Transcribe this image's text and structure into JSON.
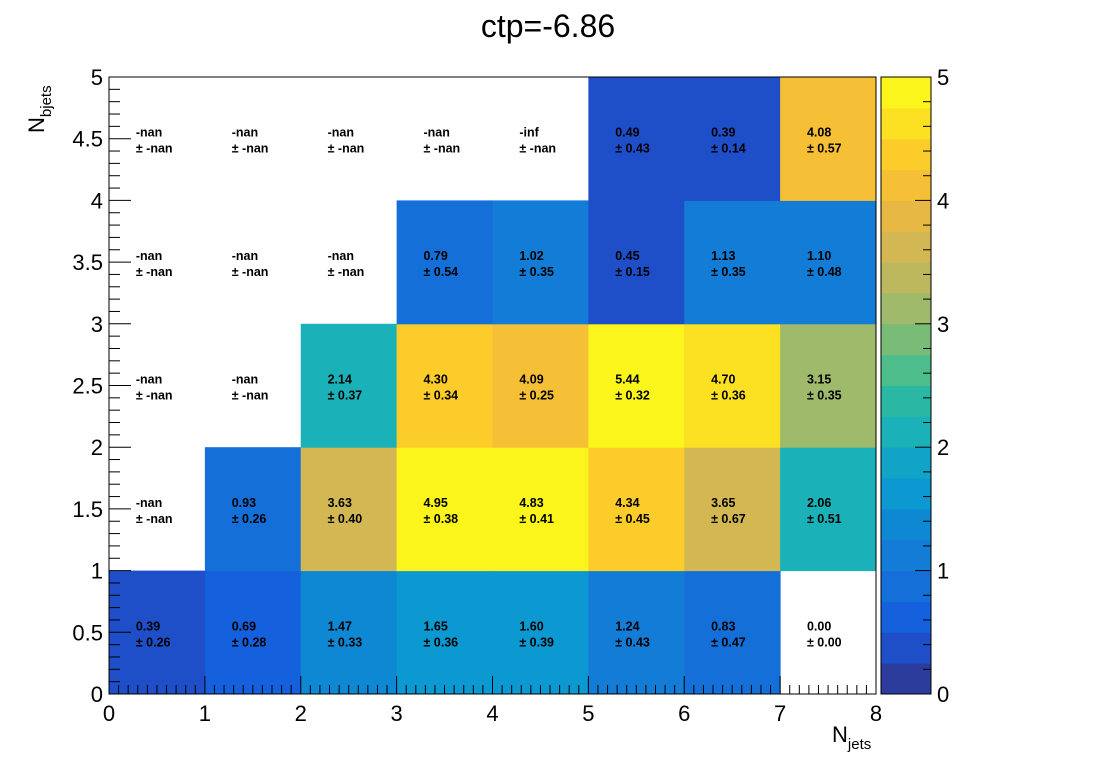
{
  "chart_data": {
    "type": "heatmap",
    "title": "ctp=-6.86",
    "xlabel": {
      "main": "N",
      "sub": "jets"
    },
    "ylabel": {
      "main": "N",
      "sub": "bjets"
    },
    "xlim": [
      0,
      8
    ],
    "ylim": [
      0,
      5
    ],
    "zlim": [
      0,
      5
    ],
    "x_ticks": [
      "0",
      "1",
      "2",
      "3",
      "4",
      "5",
      "6",
      "7",
      "8"
    ],
    "y_ticks": [
      "0",
      "0.5",
      "1",
      "1.5",
      "2",
      "2.5",
      "3",
      "3.5",
      "4",
      "4.5",
      "5"
    ],
    "z_ticks": [
      "0",
      "1",
      "2",
      "3",
      "4",
      "5"
    ],
    "rows": [
      {
        "y_bin": [
          0,
          1
        ],
        "cells": [
          {
            "x": 0,
            "value": 0.39,
            "label": "0.39",
            "error": "± 0.26"
          },
          {
            "x": 1,
            "value": 0.69,
            "label": "0.69",
            "error": "± 0.28"
          },
          {
            "x": 2,
            "value": 1.47,
            "label": "1.47",
            "error": "± 0.33"
          },
          {
            "x": 3,
            "value": 1.65,
            "label": "1.65",
            "error": "± 0.36"
          },
          {
            "x": 4,
            "value": 1.6,
            "label": "1.60",
            "error": "± 0.39"
          },
          {
            "x": 5,
            "value": 1.24,
            "label": "1.24",
            "error": "± 0.43"
          },
          {
            "x": 6,
            "value": 0.83,
            "label": "0.83",
            "error": "± 0.47"
          },
          {
            "x": 7,
            "value": 0.0,
            "label": "0.00",
            "error": "± 0.00"
          }
        ]
      },
      {
        "y_bin": [
          1,
          2
        ],
        "cells": [
          {
            "x": 0,
            "value": null,
            "label": "-nan",
            "error": "± -nan"
          },
          {
            "x": 1,
            "value": 0.93,
            "label": "0.93",
            "error": "± 0.26"
          },
          {
            "x": 2,
            "value": 3.63,
            "label": "3.63",
            "error": "± 0.40"
          },
          {
            "x": 3,
            "value": 4.95,
            "label": "4.95",
            "error": "± 0.38"
          },
          {
            "x": 4,
            "value": 4.83,
            "label": "4.83",
            "error": "± 0.41"
          },
          {
            "x": 5,
            "value": 4.34,
            "label": "4.34",
            "error": "± 0.45"
          },
          {
            "x": 6,
            "value": 3.65,
            "label": "3.65",
            "error": "± 0.67"
          },
          {
            "x": 7,
            "value": 2.06,
            "label": "2.06",
            "error": "± 0.51"
          }
        ]
      },
      {
        "y_bin": [
          2,
          3
        ],
        "cells": [
          {
            "x": 0,
            "value": null,
            "label": "-nan",
            "error": "± -nan"
          },
          {
            "x": 1,
            "value": null,
            "label": "-nan",
            "error": "± -nan"
          },
          {
            "x": 2,
            "value": 2.14,
            "label": "2.14",
            "error": "± 0.37"
          },
          {
            "x": 3,
            "value": 4.3,
            "label": "4.30",
            "error": "± 0.34"
          },
          {
            "x": 4,
            "value": 4.09,
            "label": "4.09",
            "error": "± 0.25"
          },
          {
            "x": 5,
            "value": 5.44,
            "label": "5.44",
            "error": "± 0.32"
          },
          {
            "x": 6,
            "value": 4.7,
            "label": "4.70",
            "error": "± 0.36"
          },
          {
            "x": 7,
            "value": 3.15,
            "label": "3.15",
            "error": "± 0.35"
          }
        ]
      },
      {
        "y_bin": [
          3,
          4
        ],
        "cells": [
          {
            "x": 0,
            "value": null,
            "label": "-nan",
            "error": "± -nan"
          },
          {
            "x": 1,
            "value": null,
            "label": "-nan",
            "error": "± -nan"
          },
          {
            "x": 2,
            "value": null,
            "label": "-nan",
            "error": "± -nan"
          },
          {
            "x": 3,
            "value": 0.79,
            "label": "0.79",
            "error": "± 0.54"
          },
          {
            "x": 4,
            "value": 1.02,
            "label": "1.02",
            "error": "± 0.35"
          },
          {
            "x": 5,
            "value": 0.45,
            "label": "0.45",
            "error": "± 0.15"
          },
          {
            "x": 6,
            "value": 1.13,
            "label": "1.13",
            "error": "± 0.35"
          },
          {
            "x": 7,
            "value": 1.1,
            "label": "1.10",
            "error": "± 0.48"
          }
        ]
      },
      {
        "y_bin": [
          4,
          5
        ],
        "cells": [
          {
            "x": 0,
            "value": null,
            "label": "-nan",
            "error": "± -nan"
          },
          {
            "x": 1,
            "value": null,
            "label": "-nan",
            "error": "± -nan"
          },
          {
            "x": 2,
            "value": null,
            "label": "-nan",
            "error": "± -nan"
          },
          {
            "x": 3,
            "value": null,
            "label": "-nan",
            "error": "± -nan"
          },
          {
            "x": 4,
            "value": null,
            "label": "-inf",
            "error": "± -nan"
          },
          {
            "x": 5,
            "value": 0.49,
            "label": "0.49",
            "error": "± 0.43"
          },
          {
            "x": 6,
            "value": 0.39,
            "label": "0.39",
            "error": "± 0.14"
          },
          {
            "x": 7,
            "value": 4.08,
            "label": "4.08",
            "error": "± 0.57"
          }
        ]
      }
    ],
    "palette": [
      "#2c3c9c",
      "#1e4fc9",
      "#1560dc",
      "#1470d8",
      "#127cd6",
      "#0f88d4",
      "#0c98d0",
      "#11a4c6",
      "#1ab1b9",
      "#2ab8a4",
      "#4ebd8c",
      "#79bc78",
      "#9fba6a",
      "#bdb85e",
      "#d3b753",
      "#e7b944",
      "#f5bf36",
      "#fccc2a",
      "#fce022",
      "#fbf51c"
    ],
    "grid": false,
    "legend": "none"
  }
}
